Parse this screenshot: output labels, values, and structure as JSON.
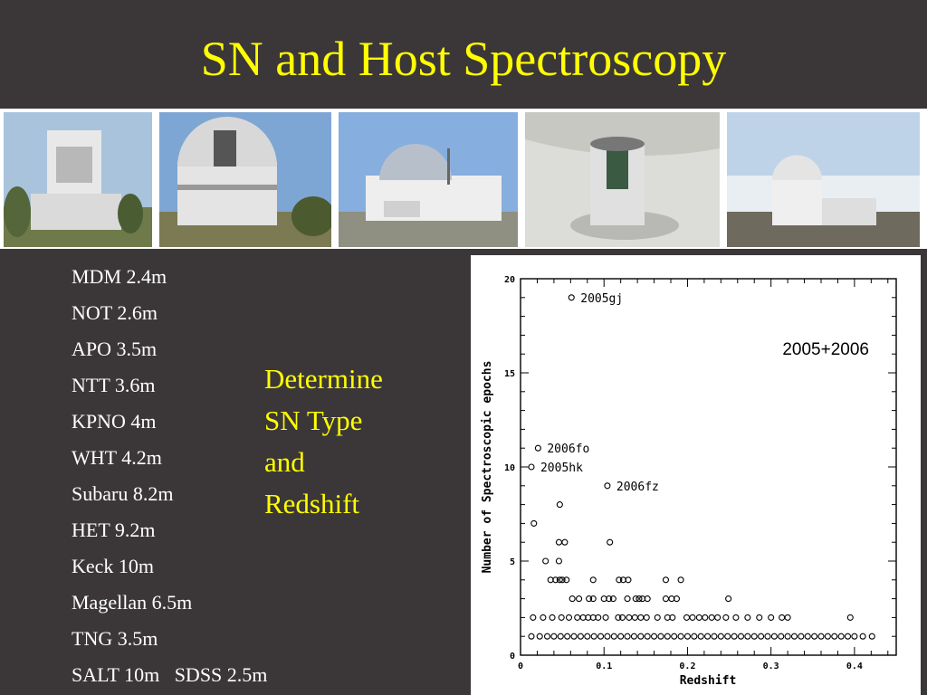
{
  "slide": {
    "title": "SN and Host Spectroscopy",
    "telescopes": [
      "MDM 2.4m",
      "NOT 2.6m",
      "APO 3.5m",
      "NTT 3.6m",
      "KPNO 4m",
      "WHT 4.2m",
      "Subaru 8.2m",
      "HET 9.2m",
      "Keck 10m",
      "Magellan 6.5m",
      "TNG 3.5m",
      "SALT 10m   SDSS 2.5m"
    ],
    "goal_lines": [
      "Determine",
      "SN Type",
      "and",
      "Redshift"
    ],
    "photos": [
      "telescope-dome-1",
      "telescope-dome-2",
      "telescope-dome-3",
      "telescope-dome-4",
      "telescope-dome-5"
    ],
    "colors": {
      "background": "#3b3738",
      "title": "#ffff00",
      "list_text": "#ffffff",
      "goal_text": "#ffff00"
    }
  },
  "chart_data": {
    "type": "scatter",
    "title": "",
    "xlabel": "Redshift",
    "ylabel": "Number of Spectroscopic epochs",
    "xlim": [
      0,
      0.45
    ],
    "ylim": [
      0,
      20
    ],
    "xticks": [
      0,
      0.1,
      0.2,
      0.3,
      0.4
    ],
    "xtick_labels": [
      "0",
      "0.1",
      "0.2",
      "0.3",
      "0.4"
    ],
    "yticks": [
      0,
      5,
      10,
      15,
      20
    ],
    "ytick_labels": [
      "0",
      "5",
      "10",
      "15",
      "20"
    ],
    "inset_label": "2005+2006",
    "marker": "open-circle",
    "points": [
      {
        "x": 0.061,
        "y": 19,
        "label": "2005gj"
      },
      {
        "x": 0.021,
        "y": 11,
        "label": "2006fo"
      },
      {
        "x": 0.013,
        "y": 10,
        "label": "2005hk"
      },
      {
        "x": 0.104,
        "y": 9,
        "label": "2006fz"
      },
      {
        "x": 0.047,
        "y": 8
      },
      {
        "x": 0.016,
        "y": 7
      },
      {
        "x": 0.046,
        "y": 6
      },
      {
        "x": 0.053,
        "y": 6
      },
      {
        "x": 0.107,
        "y": 6
      },
      {
        "x": 0.03,
        "y": 5
      },
      {
        "x": 0.046,
        "y": 5
      },
      {
        "x": 0.036,
        "y": 4
      },
      {
        "x": 0.042,
        "y": 4
      },
      {
        "x": 0.047,
        "y": 4
      },
      {
        "x": 0.05,
        "y": 4
      },
      {
        "x": 0.055,
        "y": 4
      },
      {
        "x": 0.087,
        "y": 4
      },
      {
        "x": 0.118,
        "y": 4
      },
      {
        "x": 0.123,
        "y": 4
      },
      {
        "x": 0.129,
        "y": 4
      },
      {
        "x": 0.174,
        "y": 4
      },
      {
        "x": 0.192,
        "y": 4
      },
      {
        "x": 0.062,
        "y": 3
      },
      {
        "x": 0.07,
        "y": 3
      },
      {
        "x": 0.082,
        "y": 3
      },
      {
        "x": 0.087,
        "y": 3
      },
      {
        "x": 0.1,
        "y": 3
      },
      {
        "x": 0.106,
        "y": 3
      },
      {
        "x": 0.111,
        "y": 3
      },
      {
        "x": 0.128,
        "y": 3
      },
      {
        "x": 0.138,
        "y": 3
      },
      {
        "x": 0.142,
        "y": 3
      },
      {
        "x": 0.146,
        "y": 3
      },
      {
        "x": 0.152,
        "y": 3
      },
      {
        "x": 0.174,
        "y": 3
      },
      {
        "x": 0.181,
        "y": 3
      },
      {
        "x": 0.187,
        "y": 3
      },
      {
        "x": 0.249,
        "y": 3
      },
      {
        "x": 0.015,
        "y": 2
      },
      {
        "x": 0.027,
        "y": 2
      },
      {
        "x": 0.038,
        "y": 2
      },
      {
        "x": 0.049,
        "y": 2
      },
      {
        "x": 0.058,
        "y": 2
      },
      {
        "x": 0.068,
        "y": 2
      },
      {
        "x": 0.075,
        "y": 2
      },
      {
        "x": 0.081,
        "y": 2
      },
      {
        "x": 0.087,
        "y": 2
      },
      {
        "x": 0.093,
        "y": 2
      },
      {
        "x": 0.102,
        "y": 2
      },
      {
        "x": 0.117,
        "y": 2
      },
      {
        "x": 0.122,
        "y": 2
      },
      {
        "x": 0.13,
        "y": 2
      },
      {
        "x": 0.137,
        "y": 2
      },
      {
        "x": 0.144,
        "y": 2
      },
      {
        "x": 0.151,
        "y": 2
      },
      {
        "x": 0.164,
        "y": 2
      },
      {
        "x": 0.176,
        "y": 2
      },
      {
        "x": 0.182,
        "y": 2
      },
      {
        "x": 0.199,
        "y": 2
      },
      {
        "x": 0.206,
        "y": 2
      },
      {
        "x": 0.214,
        "y": 2
      },
      {
        "x": 0.221,
        "y": 2
      },
      {
        "x": 0.229,
        "y": 2
      },
      {
        "x": 0.236,
        "y": 2
      },
      {
        "x": 0.246,
        "y": 2
      },
      {
        "x": 0.258,
        "y": 2
      },
      {
        "x": 0.272,
        "y": 2
      },
      {
        "x": 0.286,
        "y": 2
      },
      {
        "x": 0.3,
        "y": 2
      },
      {
        "x": 0.313,
        "y": 2
      },
      {
        "x": 0.32,
        "y": 2
      },
      {
        "x": 0.395,
        "y": 2
      },
      {
        "x": 0.013,
        "y": 1
      },
      {
        "x": 0.023,
        "y": 1
      },
      {
        "x": 0.032,
        "y": 1
      },
      {
        "x": 0.04,
        "y": 1
      },
      {
        "x": 0.048,
        "y": 1
      },
      {
        "x": 0.056,
        "y": 1
      },
      {
        "x": 0.064,
        "y": 1
      },
      {
        "x": 0.072,
        "y": 1
      },
      {
        "x": 0.08,
        "y": 1
      },
      {
        "x": 0.088,
        "y": 1
      },
      {
        "x": 0.096,
        "y": 1
      },
      {
        "x": 0.104,
        "y": 1
      },
      {
        "x": 0.112,
        "y": 1
      },
      {
        "x": 0.12,
        "y": 1
      },
      {
        "x": 0.128,
        "y": 1
      },
      {
        "x": 0.136,
        "y": 1
      },
      {
        "x": 0.144,
        "y": 1
      },
      {
        "x": 0.152,
        "y": 1
      },
      {
        "x": 0.16,
        "y": 1
      },
      {
        "x": 0.168,
        "y": 1
      },
      {
        "x": 0.176,
        "y": 1
      },
      {
        "x": 0.184,
        "y": 1
      },
      {
        "x": 0.192,
        "y": 1
      },
      {
        "x": 0.2,
        "y": 1
      },
      {
        "x": 0.208,
        "y": 1
      },
      {
        "x": 0.216,
        "y": 1
      },
      {
        "x": 0.224,
        "y": 1
      },
      {
        "x": 0.232,
        "y": 1
      },
      {
        "x": 0.24,
        "y": 1
      },
      {
        "x": 0.248,
        "y": 1
      },
      {
        "x": 0.256,
        "y": 1
      },
      {
        "x": 0.264,
        "y": 1
      },
      {
        "x": 0.272,
        "y": 1
      },
      {
        "x": 0.28,
        "y": 1
      },
      {
        "x": 0.288,
        "y": 1
      },
      {
        "x": 0.296,
        "y": 1
      },
      {
        "x": 0.304,
        "y": 1
      },
      {
        "x": 0.312,
        "y": 1
      },
      {
        "x": 0.32,
        "y": 1
      },
      {
        "x": 0.328,
        "y": 1
      },
      {
        "x": 0.336,
        "y": 1
      },
      {
        "x": 0.344,
        "y": 1
      },
      {
        "x": 0.352,
        "y": 1
      },
      {
        "x": 0.36,
        "y": 1
      },
      {
        "x": 0.368,
        "y": 1
      },
      {
        "x": 0.376,
        "y": 1
      },
      {
        "x": 0.384,
        "y": 1
      },
      {
        "x": 0.392,
        "y": 1
      },
      {
        "x": 0.4,
        "y": 1
      },
      {
        "x": 0.41,
        "y": 1
      },
      {
        "x": 0.421,
        "y": 1
      }
    ]
  }
}
